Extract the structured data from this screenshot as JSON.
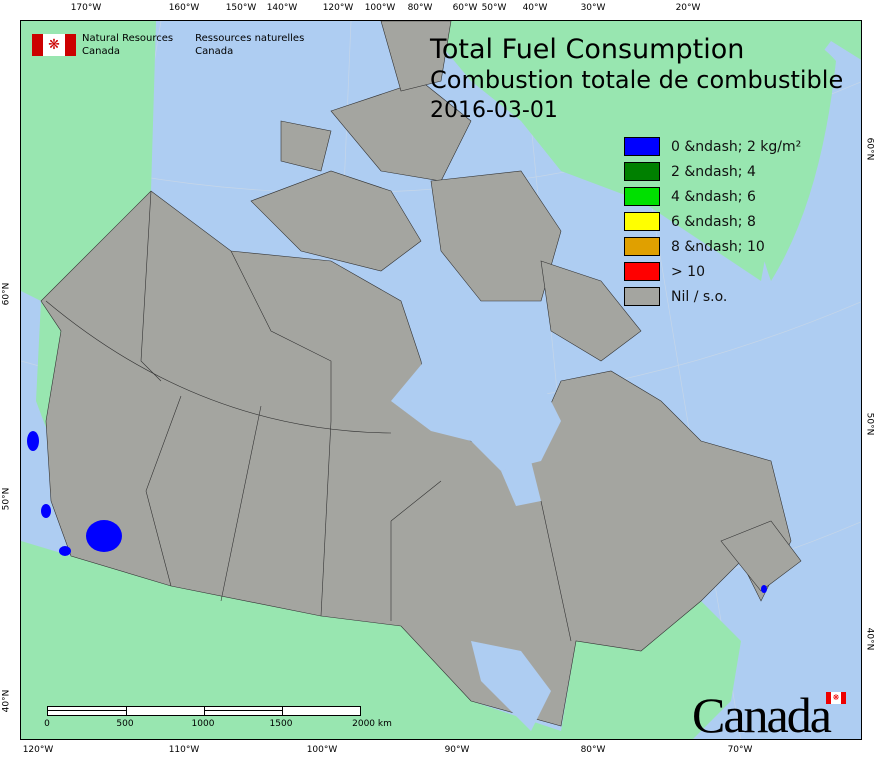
{
  "title": {
    "en": "Total Fuel Consumption",
    "fr": "Combustion totale de combustible",
    "date": "2016-03-01"
  },
  "agency": {
    "en_line1": "Natural Resources",
    "en_line2": "Canada",
    "fr_line1": "Ressources naturelles",
    "fr_line2": "Canada",
    "wordmark": "Canada"
  },
  "legend": [
    {
      "label": "0 &ndash; 2 kg/m²",
      "color": "#0000ff"
    },
    {
      "label": "2 &ndash; 4",
      "color": "#008000"
    },
    {
      "label": "4 &ndash; 6",
      "color": "#00e000"
    },
    {
      "label": "6 &ndash; 8",
      "color": "#ffff00"
    },
    {
      "label": "8 &ndash; 10",
      "color": "#e0a000"
    },
    {
      "label": "> 10",
      "color": "#ff0000"
    },
    {
      "label": "Nil / s.o.",
      "color": "#a4a5a0"
    }
  ],
  "axes": {
    "top": [
      "170°W",
      "160°W",
      "150°W",
      "140°W",
      "120°W",
      "100°W",
      "80°W",
      "60°W",
      "50°W",
      "40°W",
      "30°W",
      "20°W"
    ],
    "bottom": [
      "120°W",
      "110°W",
      "100°W",
      "90°W",
      "80°W",
      "70°W"
    ],
    "left": [
      "60°N",
      "50°N",
      "40°N"
    ],
    "right": [
      "60°N",
      "50°N",
      "40°N"
    ]
  },
  "scale_bar": {
    "labels": [
      "0",
      "500",
      "1000",
      "1500",
      "2000 km"
    ]
  },
  "colors": {
    "ocean": "#aecdf2",
    "foreign_land": "#98e6b0",
    "canada_nil": "#a4a5a0",
    "low_fuel": "#0000ff"
  }
}
